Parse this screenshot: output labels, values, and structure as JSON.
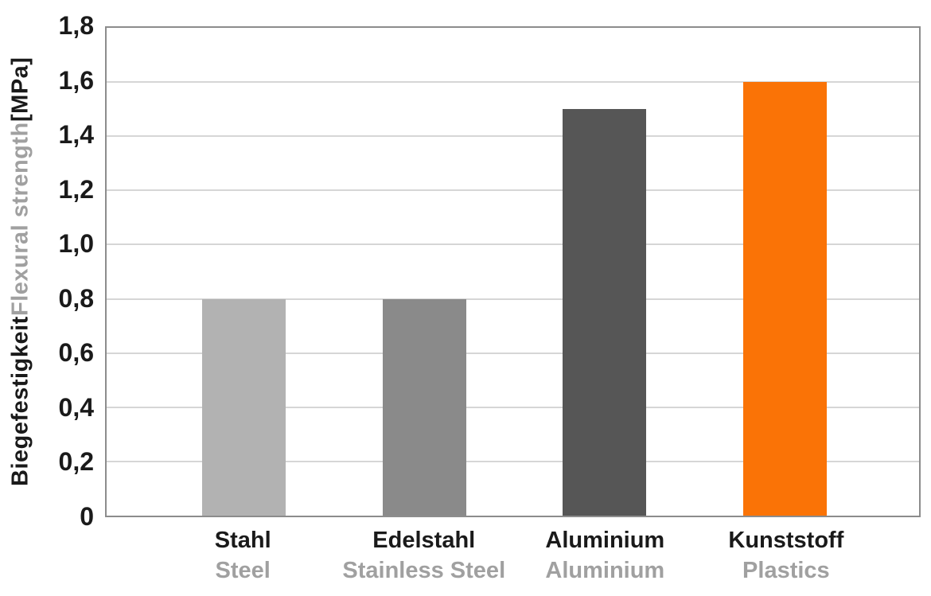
{
  "chart_data": {
    "type": "bar",
    "title": "",
    "ylabel_parts": [
      {
        "text": "Biegefestigkeit ",
        "color": "#1a1a1a"
      },
      {
        "text": "Flexural strength",
        "color": "#a0a0a0"
      },
      {
        "text": " [MPa]",
        "color": "#1a1a1a"
      }
    ],
    "categories": [
      {
        "label_de": "Stahl",
        "label_en": "Steel",
        "value": 0.8,
        "color": "#b2b2b2"
      },
      {
        "label_de": "Edelstahl",
        "label_en": "Stainless Steel",
        "value": 0.8,
        "color": "#8a8a8a"
      },
      {
        "label_de": "Aluminium",
        "label_en": "Aluminium",
        "value": 1.5,
        "color": "#565656"
      },
      {
        "label_de": "Kunststoff",
        "label_en": "Plastics",
        "value": 1.6,
        "color": "#fa7306"
      }
    ],
    "yticks": [
      {
        "label": "0",
        "value": 0.0
      },
      {
        "label": "0,2",
        "value": 0.2
      },
      {
        "label": "0,4",
        "value": 0.4
      },
      {
        "label": "0,6",
        "value": 0.6
      },
      {
        "label": "0,8",
        "value": 0.8
      },
      {
        "label": "1,0",
        "value": 1.0
      },
      {
        "label": "1,2",
        "value": 1.2
      },
      {
        "label": "1,4",
        "value": 1.4
      },
      {
        "label": "1,6",
        "value": 1.6
      },
      {
        "label": "1,8",
        "value": 1.8
      }
    ],
    "ylim": [
      0,
      1.8
    ],
    "grid": true,
    "legend": false,
    "colors": {
      "gridline": "#d6d6d6",
      "plot_border": "#8c8c8c",
      "tick_text": "#1a1a1a",
      "secondary_text": "#a0a0a0"
    }
  }
}
